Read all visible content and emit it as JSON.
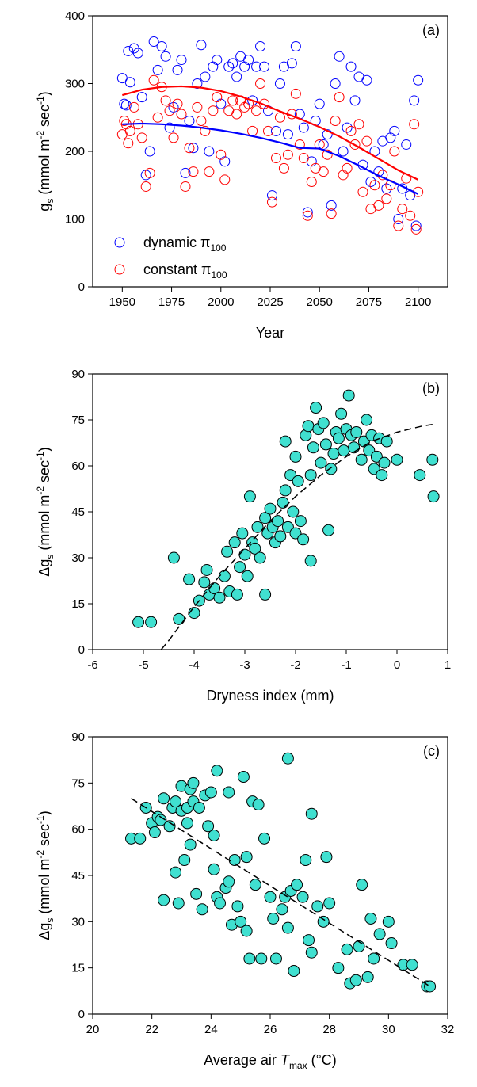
{
  "chart_data": [
    {
      "type": "scatter",
      "panel_label": "(a)",
      "x_label": [
        {
          "text": "Year"
        }
      ],
      "y_label": [
        {
          "text": "g"
        },
        {
          "text": "s",
          "style": "sub"
        },
        {
          "text": " (mmol m"
        },
        {
          "text": "-2",
          "style": "sup"
        },
        {
          "text": " sec"
        },
        {
          "text": "-1",
          "style": "sup"
        },
        {
          "text": ")"
        }
      ],
      "xlim": [
        1935,
        2115
      ],
      "xticks": [
        1950,
        1975,
        2000,
        2025,
        2050,
        2075,
        2100
      ],
      "ylim": [
        0,
        400
      ],
      "yticks": [
        0,
        100,
        200,
        300,
        400
      ],
      "legend": "lower left",
      "series": [
        {
          "name": "dynamic π",
          "name_subscript": "100",
          "color": "#0000ff",
          "marker": "open",
          "x": [
            1950,
            1951,
            1952,
            1953,
            1954,
            1956,
            1958,
            1960,
            1962,
            1964,
            1966,
            1968,
            1970,
            1972,
            1974,
            1976,
            1978,
            1980,
            1982,
            1984,
            1986,
            1988,
            1990,
            1992,
            1994,
            1996,
            1998,
            2000,
            2002,
            2004,
            2006,
            2008,
            2010,
            2012,
            2014,
            2016,
            2018,
            2020,
            2022,
            2024,
            2026,
            2028,
            2030,
            2032,
            2034,
            2036,
            2038,
            2040,
            2042,
            2044,
            2046,
            2048,
            2050,
            2052,
            2054,
            2056,
            2058,
            2060,
            2062,
            2064,
            2066,
            2068,
            2070,
            2072,
            2074,
            2076,
            2078,
            2080,
            2082,
            2084,
            2086,
            2088,
            2090,
            2092,
            2094,
            2096,
            2098,
            2099,
            2100
          ],
          "values": [
            308,
            270,
            268,
            348,
            302,
            352,
            345,
            280,
            165,
            200,
            362,
            320,
            355,
            340,
            235,
            265,
            320,
            335,
            168,
            245,
            205,
            300,
            357,
            310,
            200,
            325,
            335,
            270,
            185,
            325,
            330,
            310,
            340,
            325,
            335,
            275,
            325,
            355,
            325,
            260,
            135,
            230,
            300,
            325,
            225,
            330,
            355,
            255,
            235,
            110,
            185,
            245,
            270,
            210,
            225,
            120,
            300,
            340,
            200,
            235,
            325,
            275,
            310,
            180,
            305,
            155,
            200,
            170,
            215,
            145,
            220,
            230,
            100,
            145,
            210,
            135,
            275,
            90,
            305
          ]
        },
        {
          "name": "constant π",
          "name_subscript": "100",
          "color": "#ff0000",
          "marker": "open",
          "x": [
            1950,
            1951,
            1952,
            1953,
            1954,
            1956,
            1958,
            1960,
            1962,
            1964,
            1966,
            1968,
            1970,
            1972,
            1974,
            1976,
            1978,
            1980,
            1982,
            1984,
            1986,
            1988,
            1990,
            1992,
            1994,
            1996,
            1998,
            2000,
            2002,
            2004,
            2006,
            2008,
            2010,
            2012,
            2014,
            2016,
            2018,
            2020,
            2022,
            2024,
            2026,
            2028,
            2030,
            2032,
            2034,
            2036,
            2038,
            2040,
            2042,
            2044,
            2046,
            2048,
            2050,
            2052,
            2054,
            2056,
            2058,
            2060,
            2062,
            2064,
            2066,
            2068,
            2070,
            2072,
            2074,
            2076,
            2078,
            2080,
            2082,
            2084,
            2086,
            2088,
            2090,
            2092,
            2094,
            2096,
            2098,
            2099,
            2100
          ],
          "values": [
            225,
            245,
            240,
            212,
            230,
            265,
            240,
            220,
            148,
            168,
            305,
            250,
            295,
            275,
            260,
            220,
            270,
            255,
            148,
            205,
            170,
            265,
            245,
            230,
            170,
            260,
            280,
            195,
            158,
            260,
            275,
            255,
            275,
            265,
            270,
            230,
            260,
            300,
            270,
            230,
            125,
            190,
            250,
            175,
            195,
            255,
            285,
            210,
            190,
            105,
            155,
            175,
            210,
            170,
            195,
            108,
            245,
            280,
            165,
            175,
            230,
            210,
            240,
            140,
            215,
            115,
            150,
            120,
            165,
            130,
            150,
            200,
            90,
            115,
            160,
            105,
            240,
            85,
            140
          ]
        }
      ],
      "trend_lines": [
        {
          "color": "#0000ff",
          "dash": false,
          "x": [
            1950,
            1960,
            1970,
            1980,
            1990,
            2000,
            2010,
            2020,
            2030,
            2040,
            2050,
            2060,
            2070,
            2080,
            2090,
            2100
          ],
          "values": [
            240,
            241,
            240,
            238,
            235,
            231,
            226,
            220,
            213,
            205,
            204,
            193,
            179,
            164,
            151,
            137
          ]
        },
        {
          "color": "#ff0000",
          "dash": false,
          "x": [
            1950,
            1960,
            1970,
            1980,
            1990,
            2000,
            2010,
            2020,
            2030,
            2040,
            2050,
            2060,
            2070,
            2080,
            2090,
            2100
          ],
          "values": [
            283,
            291,
            295,
            296,
            294,
            289,
            281,
            271,
            259,
            248,
            236,
            222,
            206,
            189,
            172,
            158
          ]
        }
      ]
    },
    {
      "type": "scatter",
      "panel_label": "(b)",
      "x_label": [
        {
          "text": "Dryness index (mm)"
        }
      ],
      "y_label": [
        {
          "text": "Δg"
        },
        {
          "text": "s",
          "style": "sub"
        },
        {
          "text": " (mmol m"
        },
        {
          "text": "-2",
          "style": "sup"
        },
        {
          "text": " sec"
        },
        {
          "text": "-1",
          "style": "sup"
        },
        {
          "text": ")"
        }
      ],
      "xlim": [
        -6,
        1
      ],
      "xticks": [
        -6,
        -5,
        -4,
        -3,
        -2,
        -1,
        0,
        1
      ],
      "ylim": [
        0,
        90
      ],
      "yticks": [
        0,
        15,
        30,
        45,
        60,
        75,
        90
      ],
      "series": [
        {
          "color": "#40e0d0",
          "marker": "filled",
          "x": [
            -5.1,
            -4.85,
            -4.4,
            -4.3,
            -4.1,
            -4.0,
            -3.9,
            -3.8,
            -3.75,
            -3.7,
            -3.6,
            -3.5,
            -3.4,
            -3.35,
            -3.3,
            -3.2,
            -3.15,
            -3.1,
            -3.05,
            -3.0,
            -2.95,
            -2.9,
            -2.85,
            -2.8,
            -2.75,
            -2.7,
            -2.6,
            -2.6,
            -2.55,
            -2.5,
            -2.45,
            -2.4,
            -2.35,
            -2.3,
            -2.25,
            -2.2,
            -2.2,
            -2.15,
            -2.1,
            -2.05,
            -2.0,
            -2.0,
            -1.95,
            -1.9,
            -1.85,
            -1.8,
            -1.75,
            -1.7,
            -1.7,
            -1.65,
            -1.6,
            -1.55,
            -1.5,
            -1.45,
            -1.4,
            -1.35,
            -1.3,
            -1.25,
            -1.2,
            -1.15,
            -1.1,
            -1.05,
            -1.0,
            -0.95,
            -0.9,
            -0.85,
            -0.8,
            -0.7,
            -0.65,
            -0.6,
            -0.55,
            -0.5,
            -0.45,
            -0.4,
            -0.35,
            -0.3,
            -0.25,
            -0.2,
            0.0,
            0.45,
            0.7,
            0.72
          ],
          "values": [
            9,
            9,
            30,
            10,
            23,
            12,
            16,
            22,
            26,
            18,
            20,
            17,
            24,
            32,
            19,
            35,
            18,
            27,
            38,
            31,
            24,
            50,
            35,
            33,
            40,
            30,
            18,
            43,
            38,
            46,
            40,
            35,
            42,
            37,
            48,
            52,
            68,
            40,
            57,
            45,
            63,
            38,
            55,
            42,
            36,
            70,
            73,
            29,
            57,
            66,
            79,
            72,
            61,
            74,
            67,
            39,
            59,
            64,
            71,
            69,
            77,
            65,
            72,
            83,
            70,
            66,
            71,
            62,
            68,
            75,
            65,
            70,
            59,
            63,
            69,
            57,
            61,
            68,
            62,
            57,
            62,
            50
          ]
        }
      ],
      "trend_lines": [
        {
          "color": "#000000",
          "dash": true,
          "x": [
            -4.65,
            -4.5,
            -4,
            -3.5,
            -3,
            -2.5,
            -2,
            -1.5,
            -1,
            -0.5,
            0,
            0.5,
            0.7
          ],
          "values": [
            0,
            3,
            14,
            24,
            33,
            42,
            50,
            57,
            63,
            68,
            71,
            73,
            73.5
          ]
        }
      ]
    },
    {
      "type": "scatter",
      "panel_label": "(c)",
      "x_label": [
        {
          "text": "Average air "
        },
        {
          "text": "T",
          "style": "italic"
        },
        {
          "text": "max",
          "style": "sub"
        },
        {
          "text": " (°C)"
        }
      ],
      "y_label": [
        {
          "text": "Δg"
        },
        {
          "text": "s",
          "style": "sub"
        },
        {
          "text": " (mmol m"
        },
        {
          "text": "-2",
          "style": "sup"
        },
        {
          "text": " sec"
        },
        {
          "text": "-1",
          "style": "sup"
        },
        {
          "text": ")"
        }
      ],
      "xlim": [
        20,
        32
      ],
      "xticks": [
        20,
        22,
        24,
        26,
        28,
        30,
        32
      ],
      "ylim": [
        0,
        90
      ],
      "yticks": [
        0,
        15,
        30,
        45,
        60,
        75,
        90
      ],
      "series": [
        {
          "color": "#40e0d0",
          "marker": "filled",
          "x": [
            21.3,
            21.6,
            21.8,
            22.0,
            22.1,
            22.2,
            22.3,
            22.4,
            22.4,
            22.6,
            22.7,
            22.8,
            22.8,
            22.9,
            23.0,
            23.0,
            23.1,
            23.2,
            23.2,
            23.3,
            23.3,
            23.4,
            23.4,
            23.5,
            23.6,
            23.7,
            23.8,
            23.9,
            24.0,
            24.1,
            24.1,
            24.2,
            24.2,
            24.3,
            24.5,
            24.6,
            24.6,
            24.7,
            24.8,
            24.9,
            25.0,
            25.1,
            25.2,
            25.2,
            25.3,
            25.4,
            25.5,
            25.6,
            25.7,
            25.8,
            26.0,
            26.1,
            26.2,
            26.4,
            26.5,
            26.6,
            26.6,
            26.7,
            26.8,
            26.9,
            27.1,
            27.2,
            27.3,
            27.4,
            27.4,
            27.6,
            27.8,
            27.9,
            28.0,
            28.3,
            28.6,
            28.7,
            28.9,
            29.0,
            29.1,
            29.3,
            29.4,
            29.5,
            29.7,
            30.0,
            30.1,
            30.5,
            30.8,
            31.3,
            31.4
          ],
          "values": [
            57,
            57,
            67,
            62,
            59,
            64,
            63,
            70,
            37,
            61,
            67,
            69,
            46,
            36,
            66,
            74,
            50,
            62,
            67,
            73,
            55,
            69,
            75,
            39,
            67,
            34,
            71,
            61,
            72,
            58,
            47,
            79,
            38,
            36,
            41,
            43,
            72,
            29,
            50,
            35,
            30,
            77,
            51,
            27,
            18,
            69,
            42,
            68,
            18,
            57,
            38,
            31,
            18,
            34,
            38,
            83,
            28,
            40,
            14,
            42,
            38,
            50,
            24,
            65,
            20,
            35,
            30,
            51,
            36,
            15,
            21,
            10,
            11,
            22,
            42,
            12,
            31,
            18,
            26,
            30,
            23,
            16,
            16,
            9,
            9
          ]
        }
      ],
      "trend_lines": [
        {
          "color": "#000000",
          "dash": true,
          "x": [
            21.3,
            31.4
          ],
          "values": [
            70,
            9
          ]
        }
      ]
    }
  ]
}
